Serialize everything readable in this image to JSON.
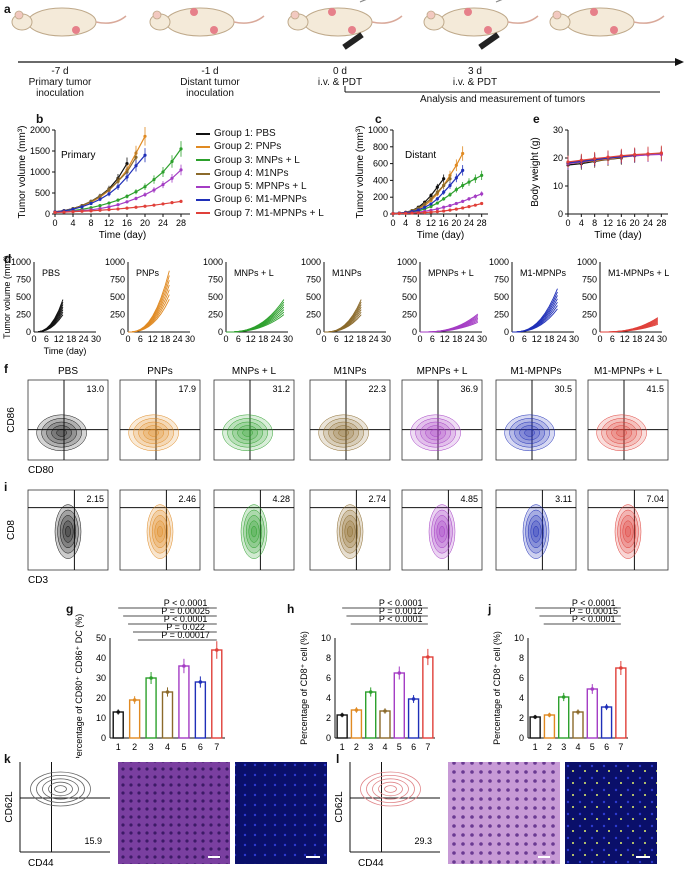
{
  "panel_letters": [
    "a",
    "b",
    "c",
    "d",
    "e",
    "f",
    "g",
    "h",
    "i",
    "j",
    "k",
    "l"
  ],
  "timeline": {
    "events": [
      {
        "day": "-7 d",
        "label1": "Primary tumor",
        "label2": "inoculation"
      },
      {
        "day": "-1 d",
        "label1": "Distant tumor",
        "label2": "inoculation"
      },
      {
        "day": "0 d",
        "label1": "i.v. & PDT",
        "label2": ""
      },
      {
        "day": "3 d",
        "label1": "i.v. & PDT",
        "label2": ""
      }
    ],
    "analysis": "Analysis and measurement of tumors"
  },
  "legend": [
    {
      "name": "Group 1: PBS",
      "color": "#111111"
    },
    {
      "name": "Group 2: PNPs",
      "color": "#e08a22"
    },
    {
      "name": "Group 3: MNPs + L",
      "color": "#2ca02c"
    },
    {
      "name": "Group 4: M1NPs",
      "color": "#8b6a2b"
    },
    {
      "name": "Group 5: MPNPs + L",
      "color": "#a43cc4"
    },
    {
      "name": "Group 6: M1-MPNPs",
      "color": "#1f2fb8"
    },
    {
      "name": "Group 7: M1-MPNPs + L",
      "color": "#e0403a"
    }
  ],
  "chart_data": [
    {
      "type": "line",
      "panel": "b",
      "annotation": "Primary",
      "ylabel": "Tumor volume (mm³)",
      "xlabel": "Time (day)",
      "xlim": [
        0,
        30
      ],
      "ylim": [
        0,
        2000
      ],
      "xticks": [
        "0",
        "4",
        "8",
        "12",
        "16",
        "20",
        "24",
        "28"
      ],
      "yticks": [
        "0",
        "500",
        "1000",
        "1500",
        "2000"
      ],
      "series": [
        {
          "name": "Group 1: PBS",
          "x": [
            0,
            2,
            4,
            6,
            8,
            10,
            12,
            14,
            16
          ],
          "values": [
            50,
            80,
            130,
            200,
            300,
            430,
            600,
            850,
            1200
          ]
        },
        {
          "name": "Group 2: PNPs",
          "x": [
            0,
            2,
            4,
            6,
            8,
            10,
            12,
            14,
            16,
            18,
            20
          ],
          "values": [
            50,
            75,
            120,
            190,
            280,
            400,
            560,
            780,
            1050,
            1450,
            1850
          ]
        },
        {
          "name": "Group 3: MNPs + L",
          "x": [
            0,
            2,
            4,
            6,
            8,
            10,
            12,
            14,
            16,
            18,
            20,
            22,
            24,
            26,
            28
          ],
          "values": [
            40,
            55,
            80,
            110,
            150,
            200,
            260,
            330,
            420,
            530,
            650,
            820,
            1000,
            1250,
            1550
          ]
        },
        {
          "name": "Group 4: M1NPs",
          "x": [
            0,
            2,
            4,
            6,
            8,
            10,
            12,
            14,
            16,
            18
          ],
          "values": [
            50,
            80,
            130,
            200,
            300,
            420,
            580,
            780,
            1000,
            1350
          ]
        },
        {
          "name": "Group 5: MPNPs + L",
          "x": [
            0,
            2,
            4,
            6,
            8,
            10,
            12,
            14,
            16,
            18,
            20,
            22,
            24,
            26,
            28
          ],
          "values": [
            40,
            50,
            65,
            80,
            100,
            130,
            170,
            220,
            290,
            370,
            460,
            570,
            700,
            850,
            1050
          ]
        },
        {
          "name": "Group 6: M1-MPNPs",
          "x": [
            0,
            2,
            4,
            6,
            8,
            10,
            12,
            14,
            16,
            18,
            20
          ],
          "values": [
            50,
            75,
            115,
            170,
            250,
            350,
            480,
            650,
            880,
            1150,
            1400
          ]
        },
        {
          "name": "Group 7: M1-MPNPs + L",
          "x": [
            0,
            2,
            4,
            6,
            8,
            10,
            12,
            14,
            16,
            18,
            20,
            22,
            24,
            26,
            28
          ],
          "values": [
            40,
            45,
            55,
            65,
            75,
            90,
            105,
            120,
            140,
            160,
            185,
            210,
            240,
            270,
            300
          ]
        }
      ]
    },
    {
      "type": "line",
      "panel": "c",
      "annotation": "Distant",
      "ylabel": "Tumor volume (mm³)",
      "xlabel": "Time (day)",
      "xlim": [
        0,
        30
      ],
      "ylim": [
        0,
        1000
      ],
      "xticks": [
        "0",
        "4",
        "8",
        "12",
        "16",
        "20",
        "24",
        "28"
      ],
      "yticks": [
        "0",
        "200",
        "400",
        "600",
        "800",
        "1000"
      ],
      "series": [
        {
          "name": "Group 1: PBS",
          "x": [
            0,
            2,
            4,
            6,
            8,
            10,
            12,
            14,
            16
          ],
          "values": [
            5,
            10,
            20,
            40,
            80,
            140,
            220,
            320,
            420
          ]
        },
        {
          "name": "Group 2: PNPs",
          "x": [
            0,
            2,
            4,
            6,
            8,
            10,
            12,
            14,
            16,
            18,
            20,
            22
          ],
          "values": [
            5,
            10,
            20,
            35,
            60,
            100,
            160,
            240,
            340,
            460,
            580,
            720
          ]
        },
        {
          "name": "Group 3: MNPs + L",
          "x": [
            0,
            2,
            4,
            6,
            8,
            10,
            12,
            14,
            16,
            18,
            20,
            22,
            24,
            26,
            28
          ],
          "values": [
            5,
            8,
            12,
            20,
            35,
            60,
            90,
            130,
            180,
            230,
            290,
            340,
            380,
            420,
            460
          ]
        },
        {
          "name": "Group 4: M1NPs",
          "x": [
            0,
            2,
            4,
            6,
            8,
            10,
            12,
            14,
            16,
            18
          ],
          "values": [
            5,
            10,
            20,
            40,
            70,
            120,
            180,
            260,
            340,
            420
          ]
        },
        {
          "name": "Group 5: MPNPs + L",
          "x": [
            0,
            2,
            4,
            6,
            8,
            10,
            12,
            14,
            16,
            18,
            20,
            22,
            24,
            26,
            28
          ],
          "values": [
            5,
            7,
            10,
            15,
            22,
            32,
            45,
            60,
            80,
            100,
            125,
            150,
            180,
            210,
            240
          ]
        },
        {
          "name": "Group 6: M1-MPNPs",
          "x": [
            0,
            2,
            4,
            6,
            8,
            10,
            12,
            14,
            16,
            18,
            20,
            22
          ],
          "values": [
            5,
            9,
            16,
            28,
            48,
            80,
            120,
            180,
            260,
            340,
            430,
            520
          ]
        },
        {
          "name": "Group 7: M1-MPNPs + L",
          "x": [
            0,
            2,
            4,
            6,
            8,
            10,
            12,
            14,
            16,
            18,
            20,
            22,
            24,
            26,
            28
          ],
          "values": [
            5,
            6,
            8,
            10,
            13,
            17,
            22,
            28,
            36,
            46,
            58,
            72,
            88,
            105,
            125
          ]
        }
      ]
    },
    {
      "type": "line",
      "panel": "e",
      "ylabel": "Body weight (g)",
      "xlabel": "Time (day)",
      "xlim": [
        0,
        30
      ],
      "ylim": [
        0,
        30
      ],
      "xticks": [
        "0",
        "4",
        "8",
        "12",
        "16",
        "20",
        "24",
        "28"
      ],
      "yticks": [
        "0",
        "10",
        "20",
        "30"
      ],
      "series": [
        {
          "name": "Group 1: PBS",
          "x": [
            0,
            4,
            8,
            12,
            16
          ],
          "values": [
            17.5,
            18,
            18.8,
            19.5,
            20
          ]
        },
        {
          "name": "Group 2: PNPs",
          "x": [
            0,
            4,
            8,
            12,
            16,
            20
          ],
          "values": [
            18,
            18.5,
            19,
            19.6,
            20.2,
            20.8
          ]
        },
        {
          "name": "Group 3: MNPs + L",
          "x": [
            0,
            4,
            8,
            12,
            16,
            20,
            24,
            28
          ],
          "values": [
            18.5,
            19,
            19.5,
            20,
            20.4,
            20.8,
            21.2,
            21.5
          ]
        },
        {
          "name": "Group 4: M1NPs",
          "x": [
            0,
            4,
            8,
            12,
            16
          ],
          "values": [
            18.2,
            18.6,
            19.2,
            19.8,
            20.3
          ]
        },
        {
          "name": "Group 5: MPNPs + L",
          "x": [
            0,
            4,
            8,
            12,
            16,
            20,
            24,
            28
          ],
          "values": [
            18,
            18.6,
            19.3,
            19.9,
            20.4,
            20.8,
            21.1,
            21.3
          ]
        },
        {
          "name": "Group 6: M1-MPNPs",
          "x": [
            0,
            4,
            8,
            12,
            16,
            20
          ],
          "values": [
            18.3,
            18.8,
            19.4,
            20,
            20.5,
            21
          ]
        },
        {
          "name": "Group 7: M1-MPNPs + L",
          "x": [
            0,
            4,
            8,
            12,
            16,
            20,
            24,
            28
          ],
          "values": [
            18.6,
            19.2,
            19.8,
            20.3,
            20.8,
            21.2,
            21.5,
            21.8
          ]
        }
      ]
    },
    {
      "type": "bar",
      "panel": "g",
      "ylabel": "Percentage of CD80⁺ CD86⁺ DC (%)",
      "categories": [
        "1",
        "2",
        "3",
        "4",
        "5",
        "6",
        "7"
      ],
      "values": [
        13,
        19,
        30,
        23,
        36,
        28,
        44
      ],
      "ylim": [
        0,
        50
      ],
      "yticks": [
        "0",
        "10",
        "20",
        "30",
        "40",
        "50"
      ],
      "pvalues": [
        "P < 0.0001",
        "P = 0.00025",
        "P < 0.0001",
        "P = 0.022",
        "P = 0.00017"
      ]
    },
    {
      "type": "bar",
      "panel": "h",
      "ylabel": "Percentage of CD8⁺ cell (%)",
      "categories": [
        "1",
        "2",
        "3",
        "4",
        "5",
        "6",
        "7"
      ],
      "values": [
        2.3,
        2.8,
        4.6,
        2.7,
        6.5,
        3.9,
        8.1
      ],
      "ylim": [
        0,
        10
      ],
      "yticks": [
        "0",
        "2",
        "4",
        "6",
        "8",
        "10"
      ],
      "pvalues": [
        "P < 0.0001",
        "P = 0.0012",
        "P < 0.0001"
      ]
    },
    {
      "type": "bar",
      "panel": "j",
      "ylabel": "Percentage of CD8⁺ cell (%)",
      "categories": [
        "1",
        "2",
        "3",
        "4",
        "5",
        "6",
        "7"
      ],
      "values": [
        2.1,
        2.3,
        4.1,
        2.6,
        4.9,
        3.1,
        7.0
      ],
      "ylim": [
        0,
        10
      ],
      "yticks": [
        "0",
        "2",
        "4",
        "6",
        "8",
        "10"
      ],
      "pvalues": [
        "P < 0.0001",
        "P = 0.00015",
        "P < 0.0001"
      ]
    }
  ],
  "panel_d": {
    "ylabel": "Tumor volume (mm³)",
    "xlabel": "Time (day)",
    "yticks": [
      "0",
      "250",
      "500",
      "750",
      "1000"
    ],
    "xticks": [
      "0",
      "6",
      "12",
      "18",
      "24",
      "30"
    ],
    "titles": [
      "PBS",
      "PNPs",
      "MNPs + L",
      "M1NPs",
      "MPNPs + L",
      "M1-MPNPs",
      "M1-MPNPs + L"
    ],
    "end_day": [
      14,
      20,
      28,
      18,
      28,
      22,
      28
    ],
    "end_vals": [
      450,
      850,
      450,
      450,
      250,
      600,
      200
    ]
  },
  "panel_f": {
    "titles": [
      "PBS",
      "PNPs",
      "MNPs + L",
      "M1NPs",
      "MPNPs + L",
      "M1-MPNPs",
      "M1-MPNPs + L"
    ],
    "values": [
      "13.0",
      "17.9",
      "31.2",
      "22.3",
      "36.9",
      "30.5",
      "41.5"
    ],
    "ylabel": "CD86",
    "xlabel": "CD80"
  },
  "panel_i": {
    "values": [
      "2.15",
      "2.46",
      "4.28",
      "2.74",
      "4.85",
      "3.11",
      "7.04"
    ],
    "ylabel": "CD8",
    "xlabel": "CD3"
  },
  "panel_k": {
    "value": "15.9",
    "ylabel": "CD62L",
    "xlabel": "CD44"
  },
  "panel_l": {
    "value": "29.3",
    "ylabel": "CD62L",
    "xlabel": "CD44"
  }
}
